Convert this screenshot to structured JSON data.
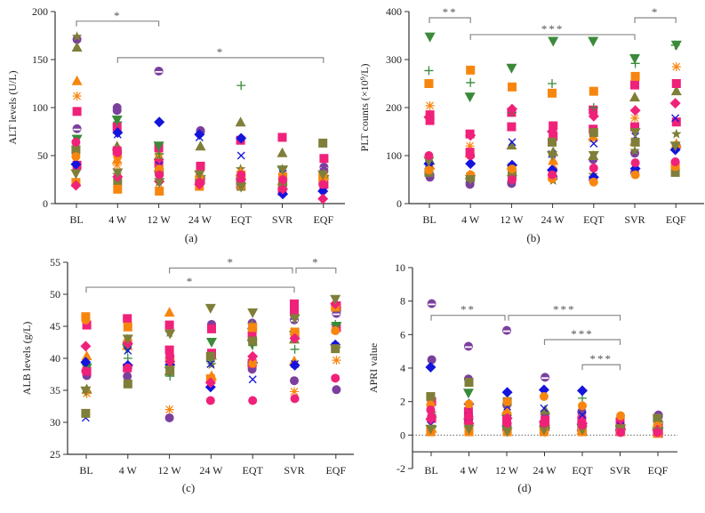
{
  "colors": {
    "purple": "#7B3F9E",
    "pink": "#F0217A",
    "blue": "#1414DC",
    "olive": "#7F7F3A",
    "orange": "#F7860F",
    "green": "#3A8A3A",
    "axis": "#333333",
    "bracket": "#888888"
  },
  "series_styles": [
    {
      "id": "s1",
      "shape": "halfcircle",
      "color": "purple"
    },
    {
      "id": "s2",
      "shape": "circle",
      "color": "purple"
    },
    {
      "id": "s3",
      "shape": "triangle",
      "color": "olive"
    },
    {
      "id": "s4",
      "shape": "star",
      "color": "olive"
    },
    {
      "id": "s5",
      "shape": "triangle",
      "color": "orange"
    },
    {
      "id": "s6",
      "shape": "asterisk",
      "color": "orange"
    },
    {
      "id": "s7",
      "shape": "square",
      "color": "pink"
    },
    {
      "id": "s8",
      "shape": "square",
      "color": "pink"
    },
    {
      "id": "s9",
      "shape": "invtriangle",
      "color": "green"
    },
    {
      "id": "s10",
      "shape": "plus",
      "color": "green"
    },
    {
      "id": "s11",
      "shape": "diamond",
      "color": "blue"
    },
    {
      "id": "s12",
      "shape": "x",
      "color": "blue"
    },
    {
      "id": "s13",
      "shape": "square",
      "color": "olive"
    },
    {
      "id": "s14",
      "shape": "circle",
      "color": "orange"
    },
    {
      "id": "s15",
      "shape": "square",
      "color": "orange"
    },
    {
      "id": "s16",
      "shape": "diamond",
      "color": "pink"
    },
    {
      "id": "s17",
      "shape": "invtriangle",
      "color": "olive"
    },
    {
      "id": "s18",
      "shape": "circle",
      "color": "pink"
    }
  ],
  "chart_data": [
    {
      "type": "scatter",
      "panel_label": "(a)",
      "ylabel": "ALT levels (U/L)",
      "ylim": [
        0,
        200
      ],
      "yticks": [
        0,
        50,
        100,
        150,
        200
      ],
      "categories": [
        "BL",
        "4 W",
        "12 W",
        "24 W",
        "EQT",
        "SVR",
        "EQF"
      ],
      "significance": [
        {
          "from": "BL",
          "to": "12 W",
          "label": "*",
          "y": 190
        },
        {
          "from": "4 W",
          "to": "EQF",
          "label": "*",
          "y": 152
        }
      ],
      "series": [
        {
          "style": "s1",
          "values": [
            78,
            100,
            138,
            75,
            27,
            20,
            38
          ]
        },
        {
          "style": "s2",
          "values": [
            171,
            97,
            33,
            76,
            25,
            15,
            34
          ]
        },
        {
          "style": "s3",
          "values": [
            163,
            60,
            50,
            60,
            85,
            53,
            30
          ]
        },
        {
          "style": "s4",
          "values": [
            174,
            30,
            22,
            20,
            36,
            36,
            28
          ]
        },
        {
          "style": "s5",
          "values": [
            128,
            46,
            38,
            30,
            33,
            24,
            30
          ]
        },
        {
          "style": "s6",
          "values": [
            112,
            40,
            51,
            25,
            30,
            26,
            27
          ]
        },
        {
          "style": "s7",
          "values": [
            96,
            80,
            58,
            39,
            66,
            69,
            47
          ]
        },
        {
          "style": "s8",
          "values": [
            40,
            55,
            42,
            25,
            20,
            13,
            20
          ]
        },
        {
          "style": "s9",
          "values": [
            67,
            87,
            60,
            25,
            22,
            35,
            25
          ]
        },
        {
          "style": "s10",
          "values": [
            60,
            85,
            52,
            20,
            123,
            30,
            22
          ]
        },
        {
          "style": "s11",
          "values": [
            41,
            74,
            85,
            72,
            68,
            10,
            13
          ]
        },
        {
          "style": "s12",
          "values": [
            45,
            72,
            40,
            69,
            50,
            31,
            18
          ]
        },
        {
          "style": "s13",
          "values": [
            56,
            24,
            33,
            24,
            18,
            22,
            63
          ]
        },
        {
          "style": "s14",
          "values": [
            49,
            49,
            36,
            28,
            18,
            26,
            25
          ]
        },
        {
          "style": "s15",
          "values": [
            22,
            15,
            13,
            18,
            30,
            28,
            28
          ]
        },
        {
          "style": "s16",
          "values": [
            19,
            28,
            23,
            20,
            25,
            15,
            5
          ]
        },
        {
          "style": "s17",
          "values": [
            31,
            32,
            22,
            30,
            17,
            35,
            30
          ]
        },
        {
          "style": "s18",
          "values": [
            64,
            53,
            30,
            22,
            30,
            25,
            20
          ]
        }
      ]
    },
    {
      "type": "scatter",
      "panel_label": "(b)",
      "ylabel": "PLT counts (×10⁹/L)",
      "ylim": [
        0,
        400
      ],
      "yticks": [
        0,
        100,
        200,
        300,
        400
      ],
      "categories": [
        "BL",
        "4 W",
        "12 W",
        "24 W",
        "EQT",
        "SVR",
        "EQF"
      ],
      "significance": [
        {
          "from": "BL",
          "to": "4 W",
          "label": "**",
          "y": 387
        },
        {
          "from": "4 W",
          "to": "SVR",
          "label": "***",
          "y": 352
        },
        {
          "from": "SVR",
          "to": "EQF",
          "label": "*",
          "y": 387
        }
      ],
      "series": [
        {
          "style": "s1",
          "values": [
            60,
            45,
            45,
            55,
            50,
            65,
            120
          ]
        },
        {
          "style": "s2",
          "values": [
            55,
            40,
            42,
            70,
            92,
            105,
            118
          ]
        },
        {
          "style": "s3",
          "values": [
            90,
            60,
            122,
            108,
            100,
            222,
            235
          ]
        },
        {
          "style": "s4",
          "values": [
            70,
            55,
            55,
            48,
            60,
            110,
            145
          ]
        },
        {
          "style": "s5",
          "values": [
            80,
            105,
            80,
            90,
            140,
            130,
            125
          ]
        },
        {
          "style": "s6",
          "values": [
            204,
            120,
            78,
            82,
            135,
            178,
            285
          ]
        },
        {
          "style": "s7",
          "values": [
            173,
            107,
            160,
            162,
            195,
            247,
            250
          ]
        },
        {
          "style": "s8",
          "values": [
            185,
            145,
            190,
            140,
            155,
            160,
            170
          ]
        },
        {
          "style": "s9",
          "values": [
            347,
            222,
            282,
            338,
            338,
            302,
            330
          ]
        },
        {
          "style": "s10",
          "values": [
            277,
            252,
            190,
            250,
            200,
            292,
            330
          ]
        },
        {
          "style": "s11",
          "values": [
            83,
            83,
            80,
            70,
            55,
            73,
            112
          ]
        },
        {
          "style": "s12",
          "values": [
            83,
            92,
            128,
            103,
            125,
            140,
            178
          ]
        },
        {
          "style": "s13",
          "values": [
            65,
            55,
            60,
            128,
            148,
            128,
            65
          ]
        },
        {
          "style": "s14",
          "values": [
            70,
            60,
            72,
            52,
            45,
            60,
            77
          ]
        },
        {
          "style": "s15",
          "values": [
            250,
            278,
            243,
            230,
            234,
            265,
            80
          ]
        },
        {
          "style": "s16",
          "values": [
            180,
            142,
            197,
            150,
            182,
            194,
            209
          ]
        },
        {
          "style": "s17",
          "values": [
            88,
            50,
            50,
            100,
            100,
            148,
            120
          ]
        },
        {
          "style": "s18",
          "values": [
            100,
            100,
            50,
            60,
            74,
            85,
            87
          ]
        }
      ]
    },
    {
      "type": "scatter",
      "panel_label": "(c)",
      "ylabel": "ALB levels (g/L)",
      "ylim": [
        25,
        55
      ],
      "yticks": [
        25,
        30,
        35,
        40,
        45,
        50,
        55
      ],
      "categories": [
        "BL",
        "4 W",
        "12 W",
        "24 W",
        "EQT",
        "SVR",
        "EQF"
      ],
      "significance": [
        {
          "from": "12 W",
          "to": "SVR",
          "label": "*",
          "y": 54.1
        },
        {
          "from": "SVR",
          "to": "EQF",
          "label": "*",
          "y": 54.1
        },
        {
          "from": "BL",
          "to": "SVR",
          "label": "*",
          "y": 51.1
        }
      ],
      "series": [
        {
          "style": "s1",
          "values": [
            38,
            42,
            40,
            45,
            45.5,
            46,
            47
          ]
        },
        {
          "style": "s2",
          "values": [
            37.3,
            37.2,
            30.7,
            45.3,
            38.3,
            36.5,
            35.1
          ]
        },
        {
          "style": "s3",
          "values": [
            35.2,
            43,
            38,
            40.5,
            45.2,
            43,
            48
          ]
        },
        {
          "style": "s4",
          "values": [
            38.7,
            42.5,
            44,
            39,
            42.6,
            43.5,
            41.5
          ]
        },
        {
          "style": "s5",
          "values": [
            40.4,
            42,
            47.2,
            37.3,
            39.5,
            39.6,
            48.5
          ]
        },
        {
          "style": "s6",
          "values": [
            34.5,
            38.5,
            32,
            36.5,
            39.5,
            34.8,
            39.7
          ]
        },
        {
          "style": "s7",
          "values": [
            45.2,
            46.2,
            45.2,
            44.6,
            43.6,
            48.5,
            48.2
          ]
        },
        {
          "style": "s8",
          "values": [
            38,
            38.5,
            41.3,
            40.8,
            39.2,
            47.2,
            44.8
          ]
        },
        {
          "style": "s9",
          "values": [
            38.5,
            41.5,
            38,
            42.5,
            42.2,
            43.6,
            45
          ]
        },
        {
          "style": "s10",
          "values": [
            39.2,
            40,
            37.2,
            39.5,
            42,
            41.4,
            45.3
          ]
        },
        {
          "style": "s11",
          "values": [
            39.4,
            38.9,
            39,
            35.5,
            39.3,
            38.9,
            42.1
          ]
        },
        {
          "style": "s12",
          "values": [
            30.7,
            41.2,
            39.3,
            39.1,
            36.7,
            39.1,
            41.9
          ]
        },
        {
          "style": "s13",
          "values": [
            31.4,
            36,
            38.2,
            40.3,
            42.7,
            43.7,
            41.5
          ]
        },
        {
          "style": "s14",
          "values": [
            46,
            42.7,
            39.8,
            36.6,
            39.2,
            44,
            44.3
          ]
        },
        {
          "style": "s15",
          "values": [
            46.5,
            44.9,
            39.9,
            36.8,
            44.8,
            44.1,
            48
          ]
        },
        {
          "style": "s16",
          "values": [
            41.9,
            42.3,
            39.5,
            36.2,
            40.3,
            43.1,
            48.5
          ]
        },
        {
          "style": "s17",
          "values": [
            34.9,
            43,
            43.8,
            47.8,
            47.1,
            46.2,
            49.2
          ]
        },
        {
          "style": "s18",
          "values": [
            38,
            38.5,
            40.3,
            33.4,
            33.4,
            33.7,
            36.9
          ]
        }
      ]
    },
    {
      "type": "scatter",
      "panel_label": "(d)",
      "ylabel": "APRI value",
      "ylim": [
        -2,
        10
      ],
      "yticks": [
        -2,
        0,
        2,
        4,
        6,
        8,
        10
      ],
      "reference_line": 0,
      "x_axis_at": -1,
      "categories": [
        "BL",
        "4 W",
        "12 W",
        "24 W",
        "EQT",
        "SVR",
        "EQF"
      ],
      "significance": [
        {
          "from": "BL",
          "to": "12 W",
          "label": "**",
          "y": 7.15
        },
        {
          "from": "12 W",
          "to": "SVR",
          "label": "***",
          "y": 7.15
        },
        {
          "from": "24 W",
          "to": "SVR",
          "label": "***",
          "y": 5.7
        },
        {
          "from": "EQT",
          "to": "SVR",
          "label": "***",
          "y": 4.2
        }
      ],
      "series": [
        {
          "style": "s1",
          "values": [
            7.85,
            5.3,
            6.25,
            3.45,
            1.4,
            0.6,
            1.2
          ]
        },
        {
          "style": "s2",
          "values": [
            4.5,
            3.35,
            1.8,
            1.3,
            1.35,
            0.4,
            1.1
          ]
        },
        {
          "style": "s3",
          "values": [
            1.3,
            1.2,
            1.4,
            1.5,
            0.5,
            0.5,
            1.0
          ]
        },
        {
          "style": "s4",
          "values": [
            1.3,
            0.4,
            1.3,
            0.5,
            0.5,
            0.3,
            0.6
          ]
        },
        {
          "style": "s5",
          "values": [
            0.4,
            1.2,
            1.5,
            0.8,
            0.3,
            0.5,
            0.3
          ]
        },
        {
          "style": "s6",
          "values": [
            0.2,
            0.8,
            0.4,
            0.3,
            0.2,
            0.2,
            0.5
          ]
        },
        {
          "style": "s7",
          "values": [
            2.0,
            1.4,
            0.9,
            0.9,
            0.9,
            0.8,
            0.4
          ]
        },
        {
          "style": "s8",
          "values": [
            1.0,
            0.9,
            0.5,
            0.5,
            0.5,
            0.2,
            0.1
          ]
        },
        {
          "style": "s9",
          "values": [
            0.3,
            2.5,
            0.3,
            0.2,
            0.4,
            0.3,
            0.2
          ]
        },
        {
          "style": "s10",
          "values": [
            0.5,
            0.4,
            0.4,
            0.3,
            2.2,
            0.3,
            0.2
          ]
        },
        {
          "style": "s11",
          "values": [
            4.05,
            1.85,
            2.55,
            2.7,
            2.65,
            0.3,
            0.3
          ]
        },
        {
          "style": "s12",
          "values": [
            0.6,
            1.1,
            1.7,
            1.6,
            1.2,
            0.55,
            0.2
          ]
        },
        {
          "style": "s13",
          "values": [
            2.3,
            3.15,
            2.0,
            0.6,
            0.4,
            0.4,
            1.0
          ]
        },
        {
          "style": "s14",
          "values": [
            1.8,
            1.85,
            2.0,
            2.3,
            1.75,
            1.15,
            0.55
          ]
        },
        {
          "style": "s15",
          "values": [
            0.2,
            0.2,
            0.2,
            0.2,
            0.2,
            0.2,
            0.1
          ]
        },
        {
          "style": "s16",
          "values": [
            0.95,
            0.7,
            1.0,
            0.8,
            0.7,
            0.4,
            0.3
          ]
        },
        {
          "style": "s17",
          "values": [
            0.35,
            0.35,
            0.2,
            0.3,
            0.3,
            0.35,
            0.2
          ]
        },
        {
          "style": "s18",
          "values": [
            1.5,
            1.1,
            0.7,
            0.7,
            0.6,
            0.15,
            0.15
          ]
        }
      ]
    }
  ]
}
